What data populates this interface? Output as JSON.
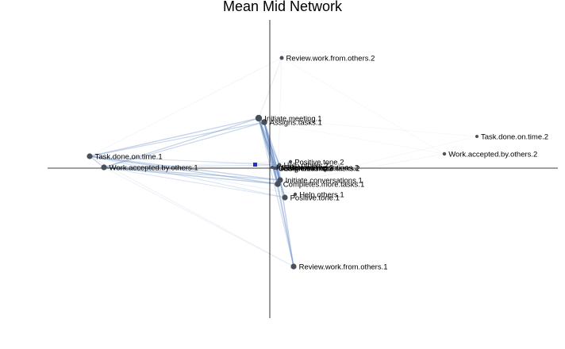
{
  "title": "Mean Mid Network",
  "colors": {
    "edge": "#6a8fc6",
    "node": "#4a505a",
    "centroid": "#1f2fe0",
    "axis": "#000000"
  },
  "nodes": [
    {
      "id": "review2",
      "label": "Review.work.from.others.2"
    },
    {
      "id": "initiate_meeting1",
      "label": "Initiate.meeting.1"
    },
    {
      "id": "assigns_tasks1",
      "label": "Assigns.tasks.1"
    },
    {
      "id": "task_time2",
      "label": "Task.done.on.time.2"
    },
    {
      "id": "work_acc2",
      "label": "Work.accepted.by.others.2"
    },
    {
      "id": "task_time1",
      "label": "Task.done.on.time.1"
    },
    {
      "id": "work_acc1",
      "label": "Work.accepted.by.others.1"
    },
    {
      "id": "positive2",
      "label": "Positive.tone.2"
    },
    {
      "id": "help2",
      "label": "Help.others.2"
    },
    {
      "id": "initiate_meeting2",
      "label": "Initiate.meeting.2"
    },
    {
      "id": "completes2",
      "label": "Completes.more.tasks.2"
    },
    {
      "id": "initiate_conv2",
      "label": "Initiate.conversations.2"
    },
    {
      "id": "assigns2",
      "label": "Assigns.tasks.2"
    },
    {
      "id": "initiate_conv1",
      "label": "Initiate.conversations.1"
    },
    {
      "id": "completes1",
      "label": "Completes.more.tasks.1"
    },
    {
      "id": "help1",
      "label": "Help.others.1"
    },
    {
      "id": "positive1",
      "label": "Positive.tone.1"
    },
    {
      "id": "review1",
      "label": "Review.work.from.others.1"
    }
  ]
}
